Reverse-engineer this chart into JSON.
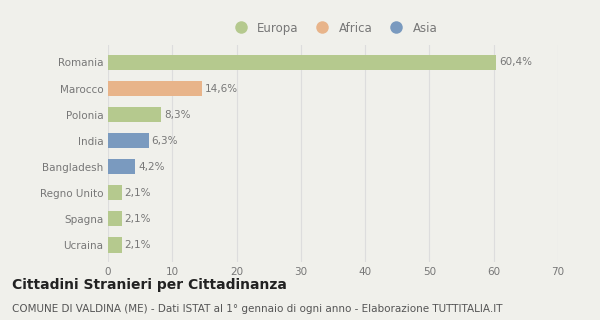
{
  "categories": [
    "Ucraina",
    "Spagna",
    "Regno Unito",
    "Bangladesh",
    "India",
    "Polonia",
    "Marocco",
    "Romania"
  ],
  "values": [
    2.1,
    2.1,
    2.1,
    4.2,
    6.3,
    8.3,
    14.6,
    60.4
  ],
  "labels": [
    "2,1%",
    "2,1%",
    "2,1%",
    "4,2%",
    "6,3%",
    "8,3%",
    "14,6%",
    "60,4%"
  ],
  "colors": [
    "#b5c98e",
    "#b5c98e",
    "#b5c98e",
    "#7a9abf",
    "#7a9abf",
    "#b5c98e",
    "#e8b48a",
    "#b5c98e"
  ],
  "legend_labels": [
    "Europa",
    "Africa",
    "Asia"
  ],
  "legend_colors": [
    "#b5c98e",
    "#e8b48a",
    "#7a9abf"
  ],
  "title": "Cittadini Stranieri per Cittadinanza",
  "subtitle": "COMUNE DI VALDINA (ME) - Dati ISTAT al 1° gennaio di ogni anno - Elaborazione TUTTITALIA.IT",
  "xlim": [
    0,
    70
  ],
  "xticks": [
    0,
    10,
    20,
    30,
    40,
    50,
    60,
    70
  ],
  "background_color": "#f0f0eb",
  "grid_color": "#dddddd",
  "title_fontsize": 10,
  "subtitle_fontsize": 7.5,
  "label_fontsize": 7.5,
  "tick_fontsize": 7.5,
  "legend_fontsize": 8.5
}
